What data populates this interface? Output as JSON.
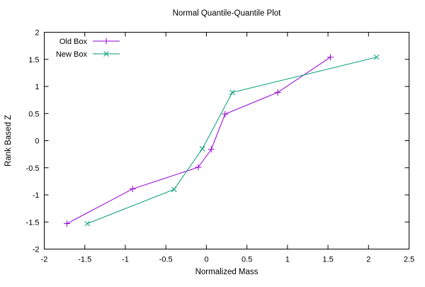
{
  "figure": {
    "background": "#ffffff",
    "border_color": "#000000",
    "text_color": "#000000"
  },
  "chart_data": {
    "type": "line",
    "title": "Normal Quantile-Quantile Plot",
    "xlabel": "Normalized Mass",
    "ylabel": "Rank Based Z",
    "xlim": [
      -2,
      2.5
    ],
    "ylim": [
      -2,
      2
    ],
    "xticks": [
      -2,
      -1.5,
      -1,
      -0.5,
      0,
      0.5,
      1,
      1.5,
      2,
      2.5
    ],
    "yticks": [
      -2,
      -1.5,
      -1,
      -0.5,
      0,
      0.5,
      1,
      1.5,
      2
    ],
    "grid": false,
    "legend_position": "top-left",
    "series": [
      {
        "name": "Old Box",
        "color": "#9400D3",
        "marker": "plus",
        "points": [
          [
            -1.72,
            -1.53
          ],
          [
            -0.91,
            -0.89
          ],
          [
            -0.1,
            -0.49
          ],
          [
            0.06,
            -0.16
          ],
          [
            0.23,
            0.49
          ],
          [
            0.88,
            0.89
          ],
          [
            1.53,
            1.54
          ]
        ]
      },
      {
        "name": "New Box",
        "color": "#009E73",
        "marker": "x",
        "points": [
          [
            -1.47,
            -1.53
          ],
          [
            -0.4,
            -0.9
          ],
          [
            -0.05,
            -0.15
          ],
          [
            0.32,
            0.89
          ],
          [
            2.1,
            1.54
          ]
        ]
      }
    ]
  }
}
